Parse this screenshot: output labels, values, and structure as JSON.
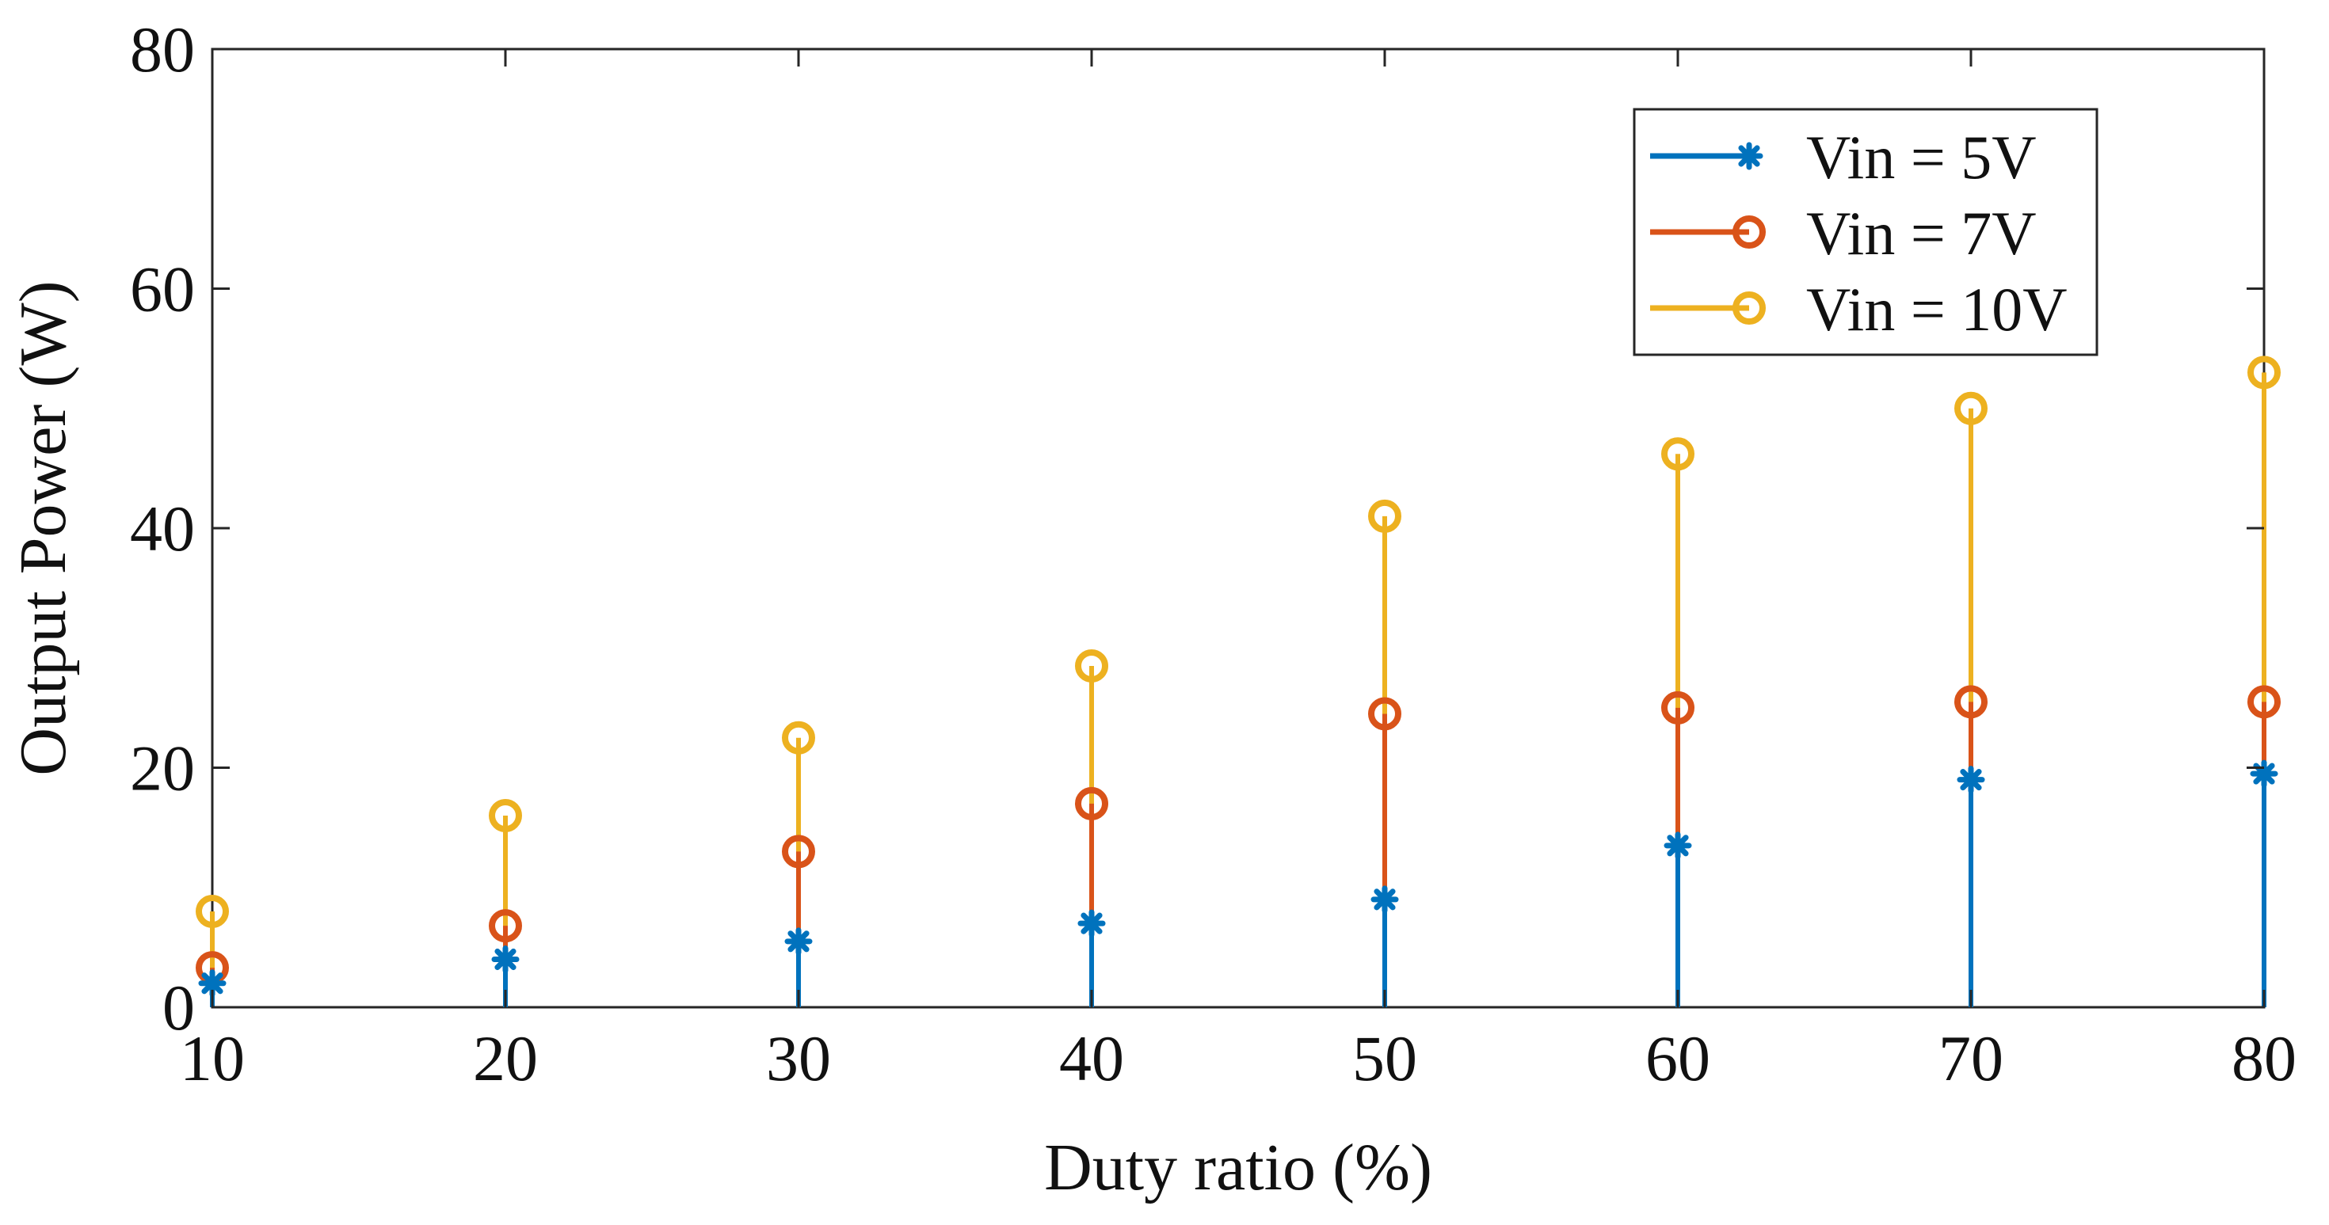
{
  "chart_data": {
    "type": "stem",
    "title": "",
    "xlabel": "Duty ratio (%)",
    "ylabel": "Output Power (W)",
    "x": [
      10,
      20,
      30,
      40,
      50,
      60,
      70,
      80
    ],
    "xlim": [
      10,
      80
    ],
    "ylim": [
      0,
      80
    ],
    "xticks": [
      10,
      20,
      30,
      40,
      50,
      60,
      70,
      80
    ],
    "yticks": [
      0,
      20,
      40,
      60,
      80
    ],
    "grid": false,
    "legend_position": "top-right",
    "series": [
      {
        "name": "Vin = 5V",
        "marker": "asterisk",
        "color": "#0072BD",
        "values": [
          2,
          4,
          5.5,
          7,
          9,
          13.5,
          19,
          19.5
        ]
      },
      {
        "name": "Vin = 7V",
        "marker": "circle",
        "color": "#D95319",
        "values": [
          3.3,
          6.8,
          13,
          17,
          24.5,
          25,
          25.5,
          25.5
        ]
      },
      {
        "name": "Vin = 10V",
        "marker": "circle",
        "color": "#EDB120",
        "values": [
          8,
          16,
          22.5,
          28.5,
          41,
          46.2,
          50,
          53
        ]
      }
    ]
  }
}
